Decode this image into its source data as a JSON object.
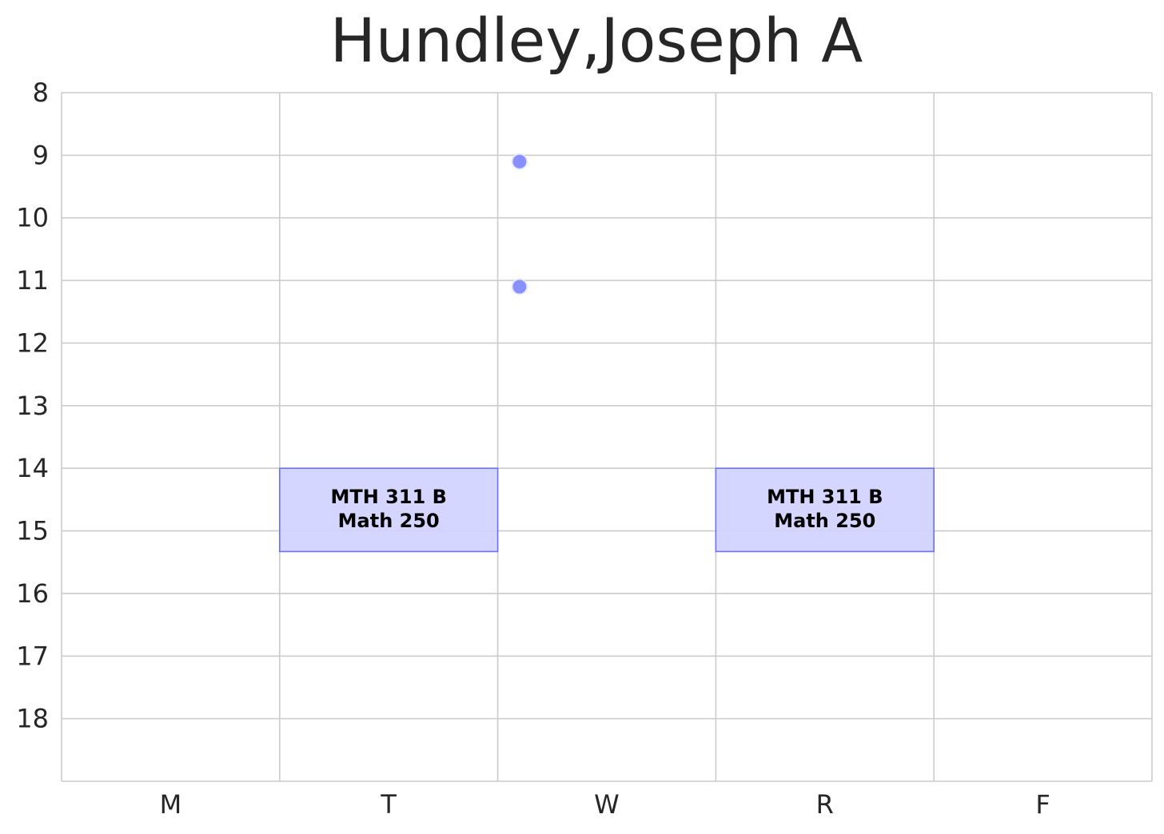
{
  "chart_data": {
    "type": "scatter",
    "title": "Hundley,Joseph A",
    "xlabel": "",
    "ylabel": "",
    "x_categories": [
      "M",
      "T",
      "W",
      "R",
      "F"
    ],
    "y_ticks": [
      8,
      9,
      10,
      11,
      12,
      13,
      14,
      15,
      16,
      17,
      18
    ],
    "ylim": [
      8,
      19
    ],
    "y_inverted": true,
    "grid": true,
    "blocks": [
      {
        "day": "T",
        "start": 14,
        "end": 15.33,
        "label_line1": "MTH 311 B",
        "label_line2": "Math 250"
      },
      {
        "day": "R",
        "start": 14,
        "end": 15.33,
        "label_line1": "MTH 311 B",
        "label_line2": "Math 250"
      }
    ],
    "points": [
      {
        "day": "W",
        "offset": 0.1,
        "y": 9.1
      },
      {
        "day": "W",
        "offset": 0.1,
        "y": 11.1
      }
    ],
    "colors": {
      "block_fill": "#d0d2ff",
      "block_edge": "#6a70ff",
      "point": "#8890ff",
      "grid": "#cccccc",
      "text": "#262626"
    }
  }
}
